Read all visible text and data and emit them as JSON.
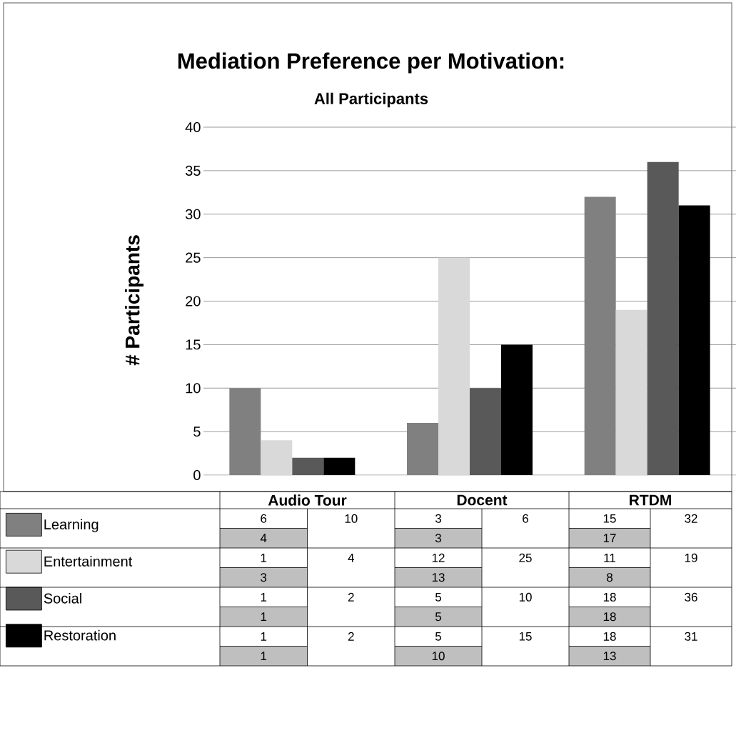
{
  "chart_data": {
    "type": "bar",
    "title": "Mediation Preference per Motivation:",
    "subtitle": "All Participants",
    "ylabel": "# Participants",
    "categories": [
      "Audio Tour",
      "Docent",
      "RTDM"
    ],
    "series": [
      {
        "name": "Learning",
        "color": "#808080",
        "values": [
          10,
          6,
          32
        ]
      },
      {
        "name": "Entertainment",
        "color": "#d9d9d9",
        "values": [
          4,
          25,
          19
        ]
      },
      {
        "name": "Social",
        "color": "#595959",
        "values": [
          2,
          10,
          36
        ]
      },
      {
        "name": "Restoration",
        "color": "#000000",
        "values": [
          2,
          15,
          31
        ]
      }
    ],
    "ylim": [
      0,
      40
    ],
    "yticks": [
      0,
      5,
      10,
      15,
      20,
      25,
      30,
      35,
      40
    ],
    "grid": "y",
    "legend": "bottom",
    "data_labels": true,
    "annotations": [
      "6",
      "4",
      "3",
      "3",
      "15",
      "17",
      "1",
      "3",
      "12",
      "13",
      "11",
      "8",
      "1",
      "1",
      "5",
      "5",
      "18",
      "18",
      "1",
      "1",
      "5",
      "10",
      "18",
      "13"
    ]
  }
}
